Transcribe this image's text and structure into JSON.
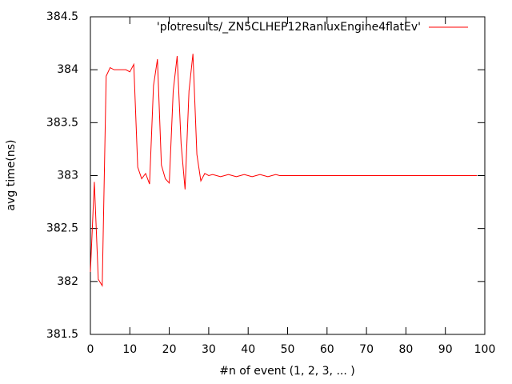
{
  "chart_data": {
    "type": "line",
    "xlabel": "#n of event (1, 2, 3, ... )",
    "ylabel": "avg time(ns)",
    "xlim": [
      0,
      100
    ],
    "xticks": [
      0,
      10,
      20,
      30,
      40,
      50,
      60,
      70,
      80,
      90,
      100
    ],
    "ylim": [
      381.5,
      384.5
    ],
    "yticks": [
      381.5,
      382,
      382.5,
      383,
      383.5,
      384,
      384.5
    ],
    "legend": "top-right",
    "x": [
      0,
      1,
      2,
      3,
      4,
      5,
      6,
      7,
      8,
      9,
      10,
      11,
      12,
      13,
      14,
      15,
      16,
      17,
      18,
      19,
      20,
      21,
      22,
      23,
      24,
      25,
      26,
      27,
      28,
      29,
      30,
      31,
      32,
      33,
      34,
      35,
      36,
      37,
      38,
      39,
      40,
      41,
      42,
      43,
      44,
      45,
      46,
      47,
      48,
      49,
      50,
      51,
      52,
      53,
      54,
      55,
      56,
      57,
      58,
      59,
      60,
      61,
      62,
      63,
      64,
      65,
      66,
      67,
      68,
      69,
      70,
      71,
      72,
      73,
      74,
      75,
      76,
      77,
      78,
      79,
      80,
      81,
      82,
      83,
      84,
      85,
      86,
      87,
      88,
      89,
      90,
      91,
      92,
      93,
      94,
      95,
      96,
      97,
      98
    ],
    "series": [
      {
        "name": "'plotresults/_ZN5CLHEP12RanluxEngine4flatEv'",
        "color": "#ff0000",
        "values": [
          382.09,
          382.94,
          382.02,
          381.96,
          383.94,
          384.02,
          384,
          384,
          384,
          384,
          383.98,
          384.05,
          383.08,
          382.97,
          383.02,
          382.92,
          383.85,
          384.1,
          383.1,
          382.97,
          382.93,
          383.8,
          384.13,
          383.3,
          382.87,
          383.8,
          384.15,
          383.2,
          382.95,
          383.02,
          383,
          383.01,
          383,
          382.99,
          383,
          383.01,
          383,
          382.99,
          383,
          383.01,
          383,
          382.99,
          383,
          383.01,
          383,
          382.99,
          383,
          383.01,
          383,
          383,
          383,
          383,
          383,
          383,
          383,
          383,
          383,
          383,
          383,
          383,
          383,
          383,
          383,
          383,
          383,
          383,
          383,
          383,
          383,
          383,
          383,
          383,
          383,
          383,
          383,
          383,
          383,
          383,
          383,
          383,
          383,
          383,
          383,
          383,
          383,
          383,
          383,
          383,
          383,
          383,
          383,
          383,
          383,
          383,
          383,
          383,
          383,
          383,
          383
        ]
      }
    ]
  }
}
